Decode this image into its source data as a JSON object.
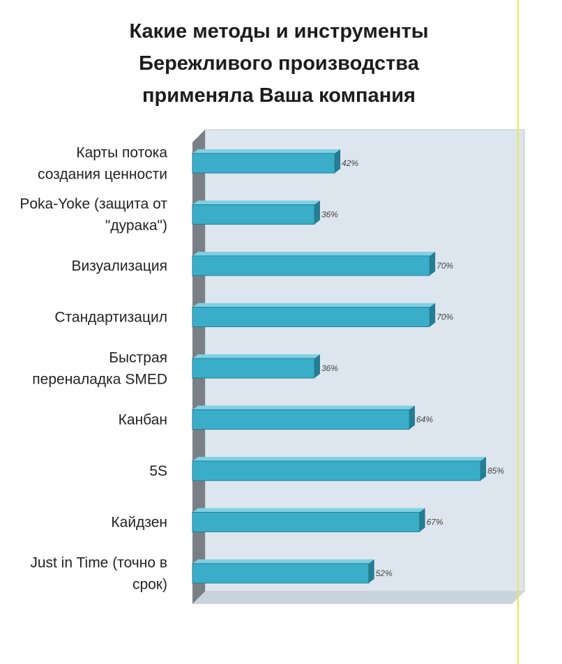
{
  "title_lines": [
    "Какие методы и инструменты",
    "Бережливого производства",
    "применяла Ваша компания"
  ],
  "colors": {
    "bar": "#3aaec9",
    "bar_edge": "#257d93",
    "plot_bg": "#dde6ee",
    "wall": "#7a7f86",
    "accent_line": "#e8e84a"
  },
  "chart_data": {
    "type": "bar",
    "orientation": "horizontal",
    "title": "Какие методы и инструменты Бережливого производства применяла Ваша компания",
    "categories": [
      [
        "Карты потока",
        "создания ценности"
      ],
      [
        "Poka-Yoke (защита от",
        "\"дурака\")"
      ],
      [
        "Визуализация"
      ],
      [
        "Стандартизацил"
      ],
      [
        "Быстрая",
        "переналадка SMED"
      ],
      [
        "Канбан"
      ],
      [
        "5S"
      ],
      [
        "Кайдзен"
      ],
      [
        "Just in Time (точно в",
        "срок)"
      ]
    ],
    "values": [
      42,
      36,
      70,
      70,
      36,
      64,
      85,
      67,
      52
    ],
    "value_labels": [
      "42%",
      "36%",
      "70%",
      "70%",
      "36%",
      "64%",
      "85%",
      "67%",
      "52%"
    ],
    "xlim": [
      0,
      100
    ],
    "grid": false,
    "legend": false
  }
}
